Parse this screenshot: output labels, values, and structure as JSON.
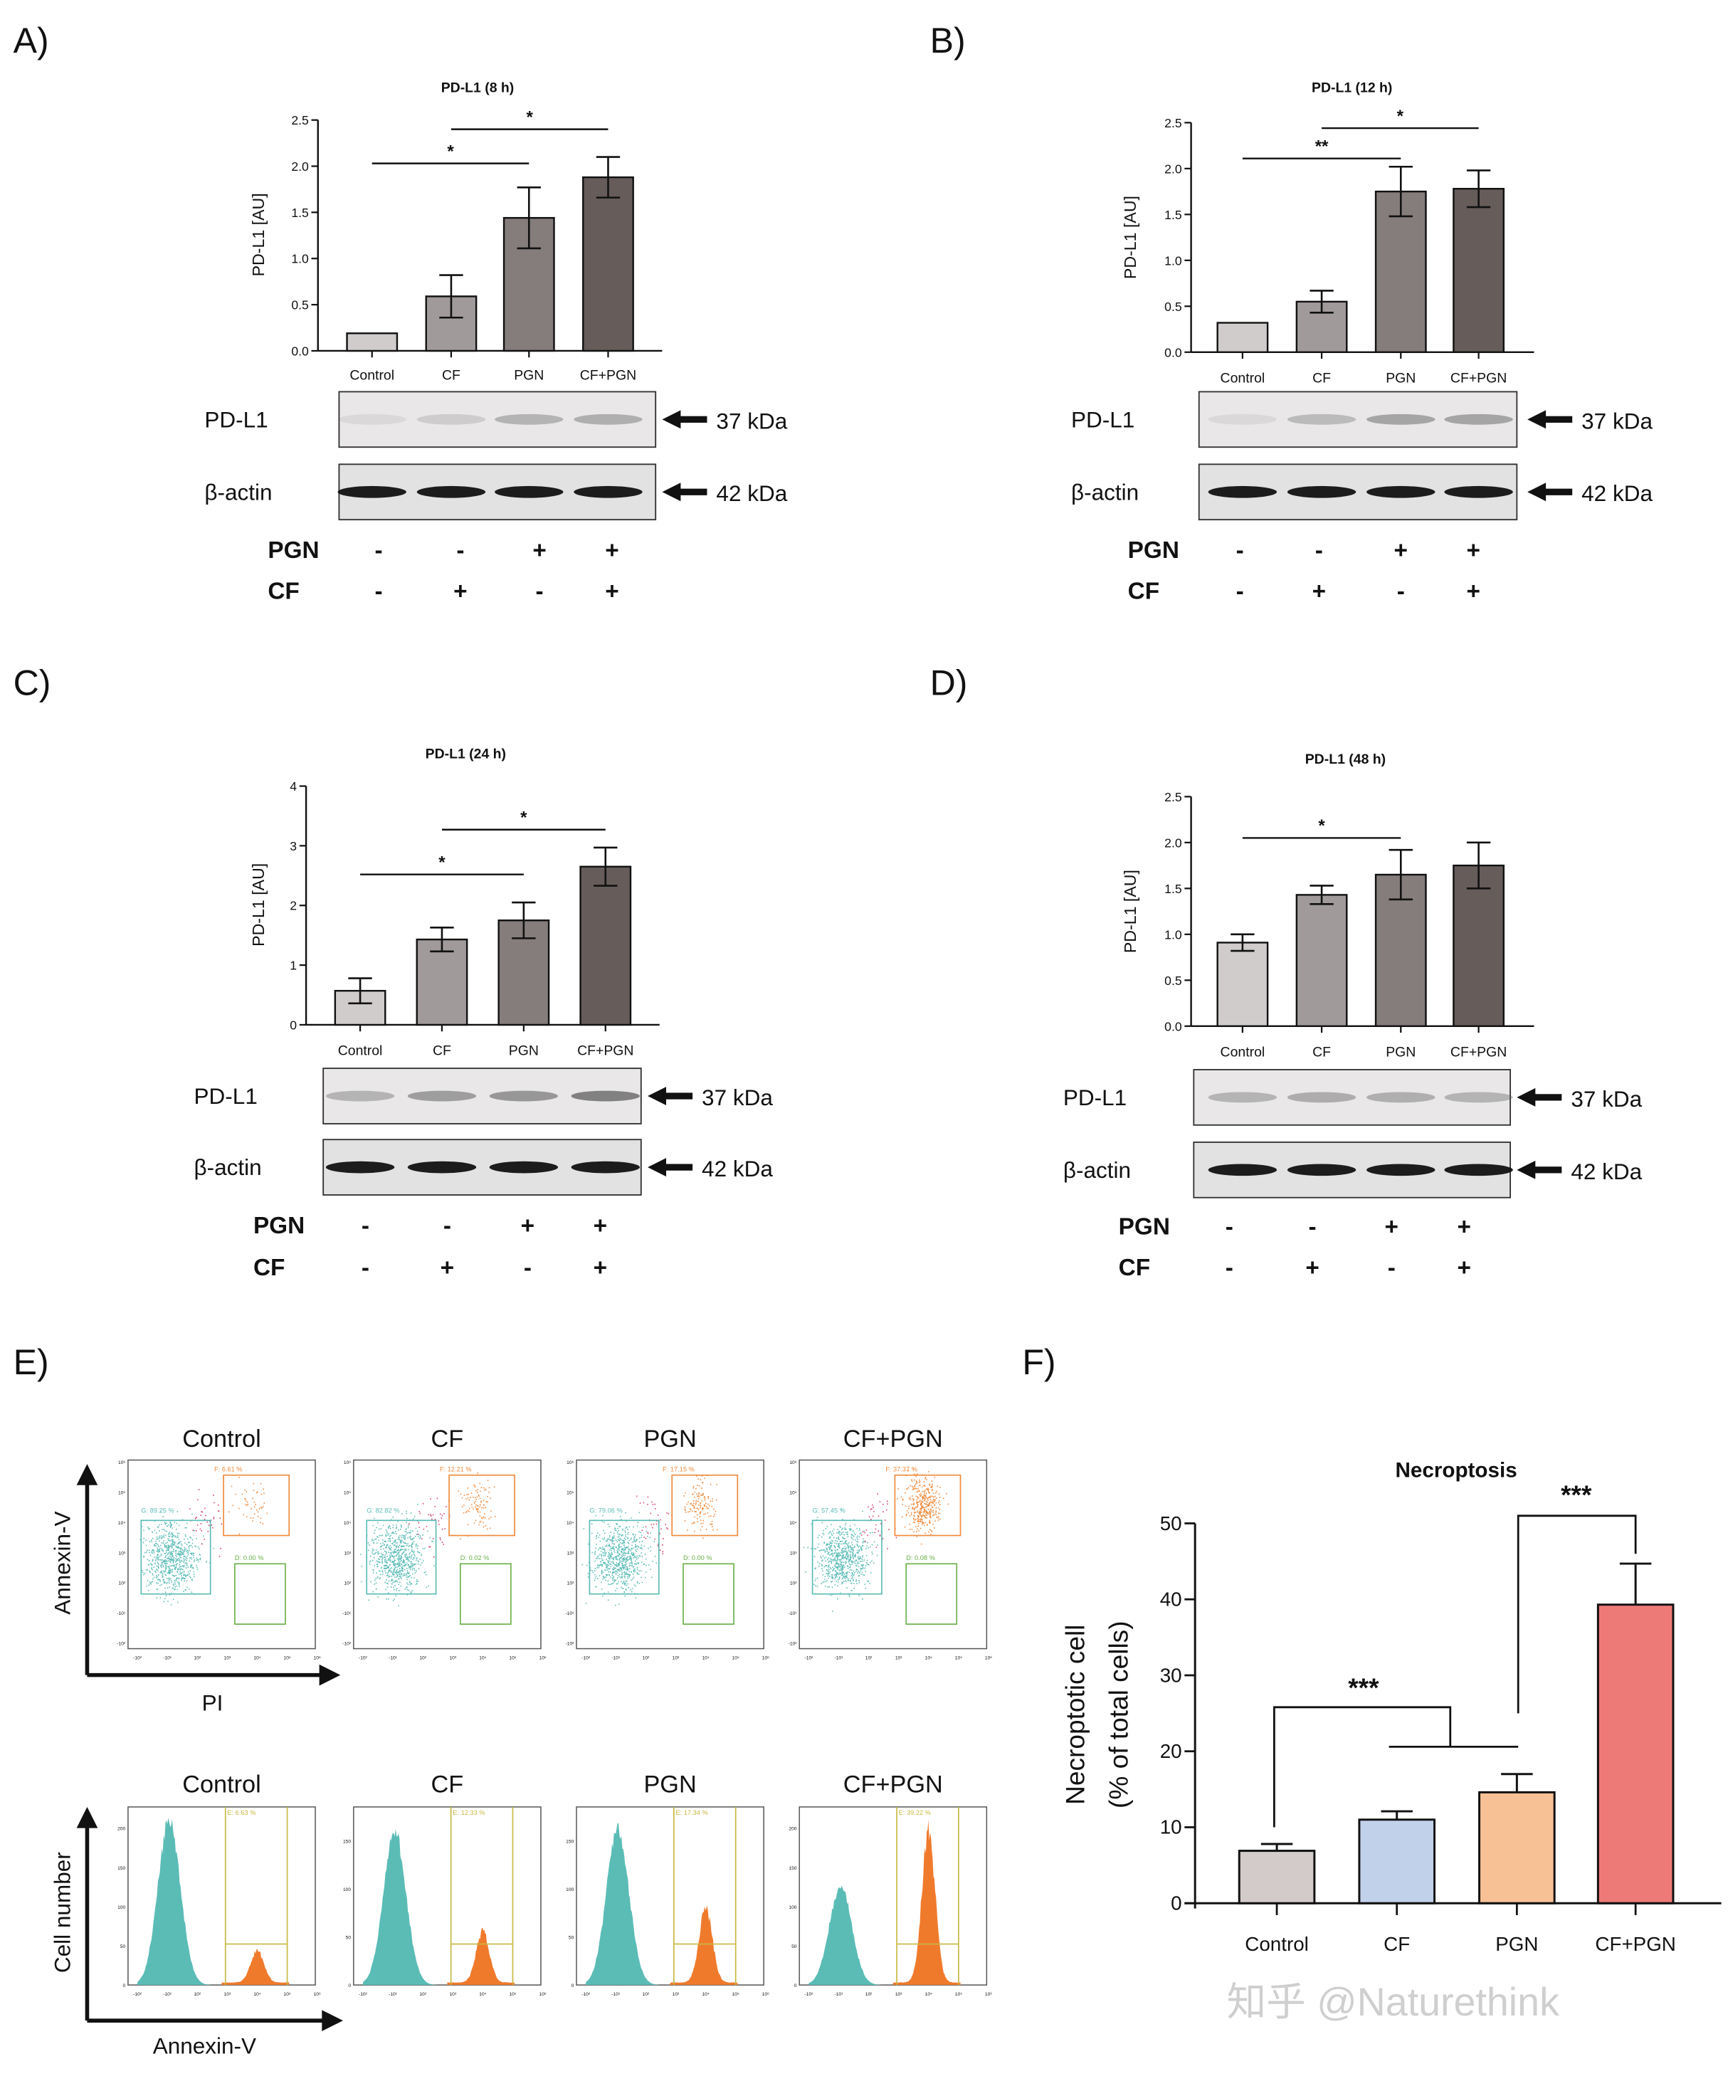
{
  "panel_labels": [
    "A)",
    "B)",
    "C)",
    "D)",
    "E)",
    "F)"
  ],
  "chart_data": [
    {
      "type": "bar",
      "panel": "A)",
      "title": "PD-L1 (8 h)",
      "ylabel": "PD-L1 [AU]",
      "xlabel": "",
      "categories": [
        "Control",
        "CF",
        "PGN",
        "CF+PGN"
      ],
      "values": [
        0.19,
        0.59,
        1.44,
        1.88
      ],
      "errors": [
        0,
        0.23,
        0.33,
        0.22
      ],
      "ylim": [
        0,
        2.5
      ],
      "ytick_labels": [
        "0.0",
        "0.5",
        "1.0",
        "1.5",
        "2.0",
        "2.5"
      ],
      "colors": [
        "#d0cccc",
        "#a19a9a",
        "#857c7c",
        "#665c5a"
      ],
      "significance": [
        {
          "from": "Control",
          "to": "PGN",
          "label": "*"
        },
        {
          "from": "CF",
          "to": "CF+PGN",
          "label": "*"
        }
      ],
      "grid": false
    },
    {
      "type": "bar",
      "panel": "B)",
      "title": "PD-L1 (12 h)",
      "ylabel": "PD-L1 [AU]",
      "xlabel": "",
      "categories": [
        "Control",
        "CF",
        "PGN",
        "CF+PGN"
      ],
      "values": [
        0.32,
        0.55,
        1.75,
        1.78
      ],
      "errors": [
        0,
        0.12,
        0.27,
        0.2
      ],
      "ylim": [
        0,
        2.5
      ],
      "ytick_labels": [
        "0.0",
        "0.5",
        "1.0",
        "1.5",
        "2.0",
        "2.5"
      ],
      "colors": [
        "#d0cccc",
        "#a19a9a",
        "#857c7c",
        "#665c5a"
      ],
      "significance": [
        {
          "from": "Control",
          "to": "PGN",
          "label": "**"
        },
        {
          "from": "CF",
          "to": "CF+PGN",
          "label": "*"
        }
      ],
      "grid": false
    },
    {
      "type": "bar",
      "panel": "C)",
      "title": "PD-L1 (24 h)",
      "ylabel": "PD-L1 [AU]",
      "xlabel": "",
      "categories": [
        "Control",
        "CF",
        "PGN",
        "CF+PGN"
      ],
      "values": [
        0.57,
        1.43,
        1.75,
        2.65
      ],
      "errors": [
        0.21,
        0.2,
        0.3,
        0.32
      ],
      "ylim": [
        0,
        4
      ],
      "ytick_labels": [
        "0",
        "1",
        "2",
        "3",
        "4"
      ],
      "colors": [
        "#d0cccc",
        "#a19a9a",
        "#857c7c",
        "#665c5a"
      ],
      "significance": [
        {
          "from": "Control",
          "to": "PGN",
          "label": "*"
        },
        {
          "from": "CF",
          "to": "CF+PGN",
          "label": "*"
        }
      ],
      "grid": false
    },
    {
      "type": "bar",
      "panel": "D)",
      "title": "PD-L1 (48 h)",
      "ylabel": "PD-L1 [AU]",
      "xlabel": "",
      "categories": [
        "Control",
        "CF",
        "PGN",
        "CF+PGN"
      ],
      "values": [
        0.91,
        1.43,
        1.65,
        1.75
      ],
      "errors": [
        0.09,
        0.1,
        0.27,
        0.25
      ],
      "ylim": [
        0,
        2.5
      ],
      "ytick_labels": [
        "0.0",
        "0.5",
        "1.0",
        "1.5",
        "2.0",
        "2.5"
      ],
      "colors": [
        "#d0cccc",
        "#a19a9a",
        "#857c7c",
        "#665c5a"
      ],
      "significance": [
        {
          "from": "Control",
          "to": "PGN",
          "label": "*"
        }
      ],
      "grid": false
    },
    {
      "type": "bar",
      "panel": "F)",
      "title": "Necroptosis",
      "ylabel": "Necroptotic cell",
      "ylabel2": "(% of total cells)",
      "xlabel": "",
      "categories": [
        "Control",
        "CF",
        "PGN",
        "CF+PGN"
      ],
      "values": [
        6.9,
        11.0,
        14.6,
        39.3
      ],
      "errors": [
        0.9,
        1.1,
        2.4,
        5.4
      ],
      "ylim": [
        0,
        50
      ],
      "ytick_labels": [
        "0",
        "10",
        "20",
        "30",
        "40",
        "50"
      ],
      "colors": [
        "#d2cbc9",
        "#c2d1ea",
        "#f8c195",
        "#ee7a78"
      ],
      "significance": [
        {
          "from": "Control",
          "to": "CF, PGN",
          "label": "***"
        },
        {
          "from": "PGN",
          "to": "CF+PGN",
          "label": "***"
        }
      ],
      "grid": false
    }
  ],
  "blots": [
    {
      "panel": "A)",
      "rows": [
        {
          "label": "PD-L1",
          "size": "37 kDa"
        },
        {
          "label": "β-actin",
          "size": "42 kDa"
        }
      ],
      "treatments": [
        {
          "label": "PGN",
          "signs": [
            "-",
            "-",
            "+",
            "+"
          ]
        },
        {
          "label": "CF",
          "signs": [
            "-",
            "+",
            "-",
            "+"
          ]
        }
      ]
    },
    {
      "panel": "B)",
      "rows": [
        {
          "label": "PD-L1",
          "size": "37 kDa"
        },
        {
          "label": "β-actin",
          "size": "42 kDa"
        }
      ],
      "treatments": [
        {
          "label": "PGN",
          "signs": [
            "-",
            "-",
            "+",
            "+"
          ]
        },
        {
          "label": "CF",
          "signs": [
            "-",
            "+",
            "-",
            "+"
          ]
        }
      ]
    },
    {
      "panel": "C)",
      "rows": [
        {
          "label": "PD-L1",
          "size": "37 kDa"
        },
        {
          "label": "β-actin",
          "size": "42 kDa"
        }
      ],
      "treatments": [
        {
          "label": "PGN",
          "signs": [
            "-",
            "-",
            "+",
            "+"
          ]
        },
        {
          "label": "CF",
          "signs": [
            "-",
            "+",
            "-",
            "+"
          ]
        }
      ]
    },
    {
      "panel": "D)",
      "rows": [
        {
          "label": "PD-L1",
          "size": "37 kDa"
        },
        {
          "label": "β-actin",
          "size": "42 kDa"
        }
      ],
      "treatments": [
        {
          "label": "PGN",
          "signs": [
            "-",
            "-",
            "+",
            "+"
          ]
        },
        {
          "label": "CF",
          "signs": [
            "-",
            "+",
            "-",
            "+"
          ]
        }
      ]
    }
  ],
  "flow": {
    "conditions": [
      "Control",
      "CF",
      "PGN",
      "CF+PGN"
    ],
    "scatter": {
      "y_axis_label": "Annexin-V",
      "x_axis_label": "PI",
      "gate_G": [
        "G: 89.25 %",
        "G: 82.82 %",
        "G: 79.06 %",
        "G: 57.45 %"
      ],
      "gate_F": [
        "F: 6.61 %",
        "F: 12.21 %",
        "F: 17.15 %",
        "F: 37.37 %"
      ],
      "gate_D": [
        "D: 0.00 %",
        "D: 0.02 %",
        "D: 0.00 %",
        "D: 0.08 %"
      ],
      "gate_colors": {
        "G": "#5bbcb6",
        "F": "#f08a3c",
        "D": "#6bb04a"
      },
      "x_ticks": [
        "-10²",
        "-10¹",
        "10²",
        "10³",
        "10⁴",
        "10⁵",
        "10⁶"
      ],
      "y_ticks": [
        "10⁶",
        "10⁵",
        "10⁴",
        "10³",
        "10²",
        "-10¹",
        "-10²"
      ]
    },
    "histogram": {
      "y_axis_label": "Cell number",
      "x_axis_label": "Annexin-V",
      "gate_E": [
        "E: 6.63 %",
        "E: 12.33 %",
        "E: 17.34 %",
        "E: 39.22 %"
      ],
      "y_ticks": [
        [
          "0",
          "50",
          "100",
          "150",
          "200"
        ],
        [
          "0",
          "50",
          "100",
          "150"
        ],
        [
          "0",
          "50",
          "100",
          "150"
        ],
        [
          "0",
          "50",
          "100",
          "150",
          "200"
        ]
      ],
      "x_ticks": [
        "-10²",
        "-10¹",
        "10²",
        "10³",
        "10⁴",
        "10⁵",
        "10⁶"
      ],
      "colors": {
        "negative": "#5bbcb6",
        "positive": "#f07a2c",
        "gate": "#c8b840"
      }
    }
  },
  "watermark": "知乎 @Naturethink"
}
